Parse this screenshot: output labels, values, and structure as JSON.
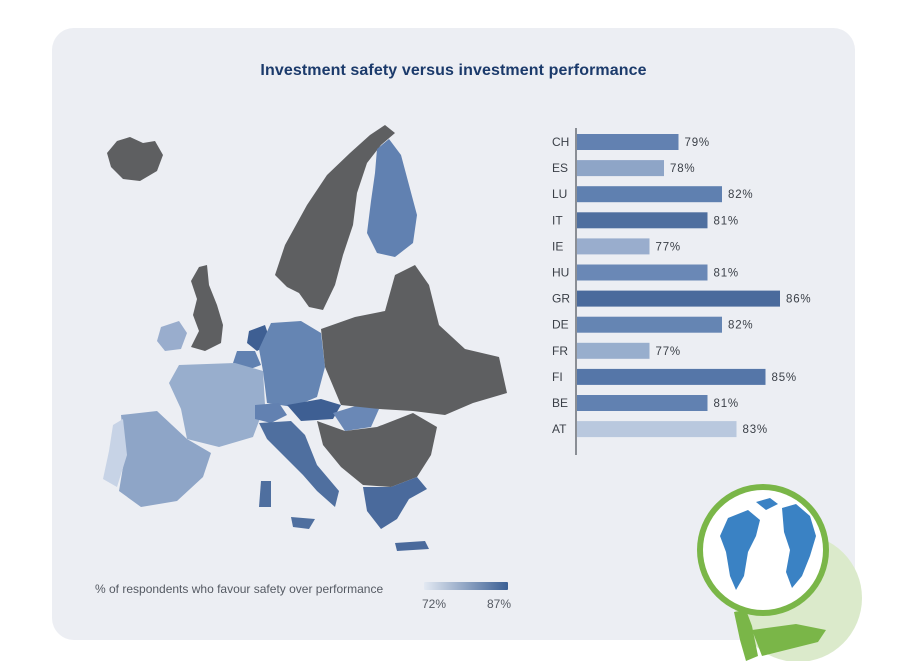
{
  "title": "Investment safety versus investment performance",
  "chart_data": {
    "type": "bar",
    "orientation": "horizontal",
    "title": "Investment safety versus investment performance",
    "categories": [
      "CH",
      "ES",
      "LU",
      "IT",
      "IE",
      "HU",
      "GR",
      "DE",
      "FR",
      "FI",
      "BE",
      "AT"
    ],
    "values": [
      79,
      78,
      82,
      81,
      77,
      81,
      86,
      82,
      77,
      85,
      81,
      83
    ],
    "value_suffix": "%",
    "bar_colors": [
      "#6281b1",
      "#8ea5c7",
      "#5f80b0",
      "#4f6f9f",
      "#99adcd",
      "#6a88b6",
      "#4a6a9c",
      "#6585b3",
      "#98aecd",
      "#5576a8",
      "#6181b1",
      "#b9c8de"
    ],
    "axis": {
      "min": 72,
      "max": 87
    },
    "legend": {
      "label": "% of respondents who favour safety over performance",
      "min_label": "72%",
      "max_label": "87%",
      "min_color": "#e3e9f2",
      "max_color": "#3b5f94"
    }
  },
  "colors": {
    "title": "#1b3a6b",
    "card_bg": "#eceef3",
    "map_dark": "#5e5f61",
    "accent_green": "#7ab648"
  }
}
